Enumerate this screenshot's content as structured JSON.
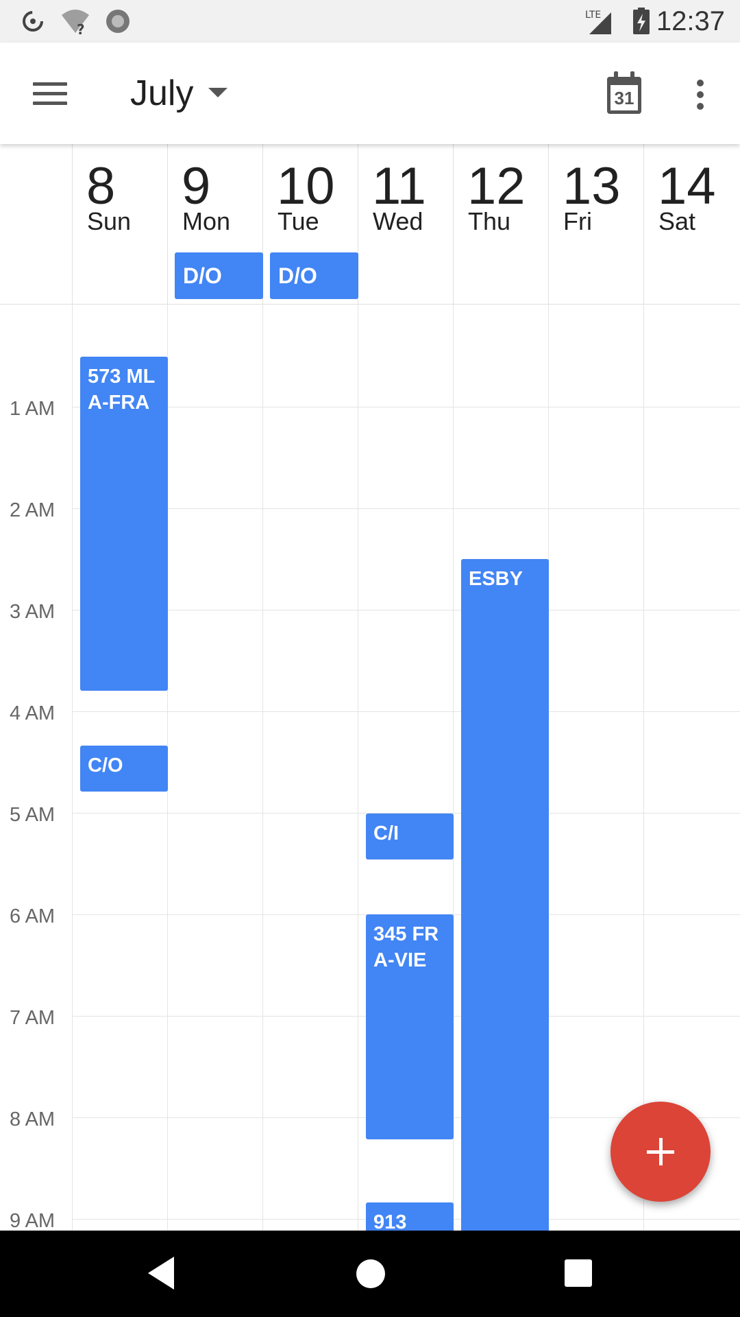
{
  "status_bar": {
    "network": "LTE",
    "time": "12:37",
    "icons": [
      "data-saver-icon",
      "wifi-unknown-icon",
      "record-icon",
      "signal-icon",
      "battery-charging-icon"
    ]
  },
  "app_bar": {
    "title": "July",
    "today_icon_number": "31",
    "icons": [
      "menu-icon",
      "dropdown-arrow-icon",
      "today-calendar-icon",
      "more-vert-icon"
    ]
  },
  "days": [
    {
      "num": "8",
      "name": "Sun"
    },
    {
      "num": "9",
      "name": "Mon"
    },
    {
      "num": "10",
      "name": "Tue"
    },
    {
      "num": "11",
      "name": "Wed"
    },
    {
      "num": "12",
      "name": "Thu"
    },
    {
      "num": "13",
      "name": "Fri"
    },
    {
      "num": "14",
      "name": "Sat"
    }
  ],
  "all_day_events": [
    {
      "title": "D/O",
      "day": "9 Mon"
    },
    {
      "title": "D/O",
      "day": "10 Tue"
    }
  ],
  "hours": [
    "1 AM",
    "2 AM",
    "3 AM",
    "4 AM",
    "5 AM",
    "6 AM",
    "7 AM",
    "8 AM",
    "9 AM"
  ],
  "events": [
    {
      "title": "573 MLA-FRA",
      "day": "8 Sun"
    },
    {
      "title": "C/O",
      "day": "8 Sun"
    },
    {
      "title": "C/I",
      "day": "11 Wed"
    },
    {
      "title": "345 FRA-VIE",
      "day": "11 Wed"
    },
    {
      "title": "913",
      "day": "11 Wed"
    },
    {
      "title": "ESBY",
      "day": "12 Thu"
    }
  ],
  "fab": {
    "icon": "plus-icon",
    "color": "#db4437"
  },
  "colors": {
    "event": "#4285f4",
    "app_bar": "#ffffff",
    "status_bar": "#f1f1f1"
  },
  "nav_bar": {
    "icons": [
      "back-icon",
      "home-icon",
      "recents-icon"
    ]
  }
}
